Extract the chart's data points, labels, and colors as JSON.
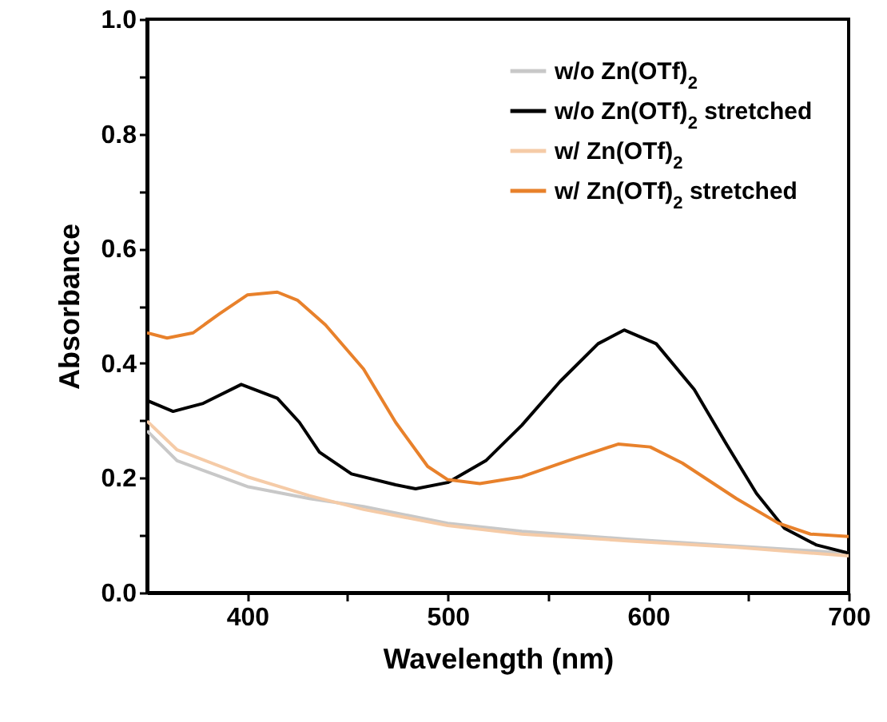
{
  "chart_data": {
    "type": "line",
    "xlabel": "Wavelength (nm)",
    "ylabel": "Absorbance",
    "xlim": [
      350,
      700
    ],
    "ylim": [
      0,
      1
    ],
    "xticks": [
      {
        "value": 400,
        "label": "400"
      },
      {
        "value": 450,
        "label": null
      },
      {
        "value": 500,
        "label": "500"
      },
      {
        "value": 550,
        "label": null
      },
      {
        "value": 600,
        "label": "600"
      },
      {
        "value": 650,
        "label": null
      },
      {
        "value": 700,
        "label": "700"
      }
    ],
    "yticks": [
      {
        "value": 0,
        "label": "0.0"
      },
      {
        "value": 0.1,
        "label": null
      },
      0.2,
      {
        "value": 0.3,
        "label": null
      },
      0.4,
      {
        "value": 0.5,
        "label": null
      },
      0.6,
      {
        "value": 0.7,
        "label": null
      },
      0.8,
      {
        "value": 0.9,
        "label": null
      },
      {
        "value": 1,
        "label": "1.0"
      }
    ],
    "grid": false,
    "legend": "top right",
    "series": [
      {
        "name": "w/o Zn(OTf)$_{2}$",
        "color": "#c8c8c8",
        "x": [
          350,
          365,
          400,
          431,
          458,
          500,
          537,
          591,
          644,
          700
        ],
        "values": [
          0.282,
          0.23,
          0.185,
          0.164,
          0.15,
          0.121,
          0.107,
          0.093,
          0.081,
          0.069
        ]
      },
      {
        "name": "w/o Zn(OTf)$_{2}$ stretched",
        "color": "#000000",
        "x": [
          350,
          363,
          378,
          397,
          415,
          426,
          436,
          452,
          474,
          484,
          500,
          519,
          537,
          556,
          575,
          588,
          604,
          623,
          639,
          654,
          668,
          684,
          700
        ],
        "values": [
          0.335,
          0.316,
          0.33,
          0.363,
          0.339,
          0.297,
          0.245,
          0.207,
          0.188,
          0.181,
          0.192,
          0.23,
          0.292,
          0.368,
          0.434,
          0.458,
          0.434,
          0.354,
          0.259,
          0.173,
          0.112,
          0.083,
          0.069
        ]
      },
      {
        "name": "w/ Zn(OTf)$_{2}$",
        "color": "#f5cba7",
        "x": [
          350,
          365,
          400,
          431,
          458,
          500,
          537,
          591,
          644,
          700
        ],
        "values": [
          0.299,
          0.249,
          0.202,
          0.169,
          0.145,
          0.117,
          0.102,
          0.09,
          0.079,
          0.064
        ]
      },
      {
        "name": "w/ Zn(OTf)$_{2}$ stretched",
        "color": "#e8812b",
        "x": [
          350,
          360,
          373,
          386,
          400,
          415,
          425,
          439,
          458,
          474,
          490,
          500,
          516,
          537,
          564,
          585,
          601,
          617,
          644,
          665,
          681,
          700
        ],
        "values": [
          0.453,
          0.444,
          0.453,
          0.486,
          0.519,
          0.524,
          0.51,
          0.467,
          0.39,
          0.297,
          0.22,
          0.197,
          0.19,
          0.202,
          0.235,
          0.259,
          0.254,
          0.226,
          0.164,
          0.121,
          0.102,
          0.098
        ]
      }
    ]
  }
}
